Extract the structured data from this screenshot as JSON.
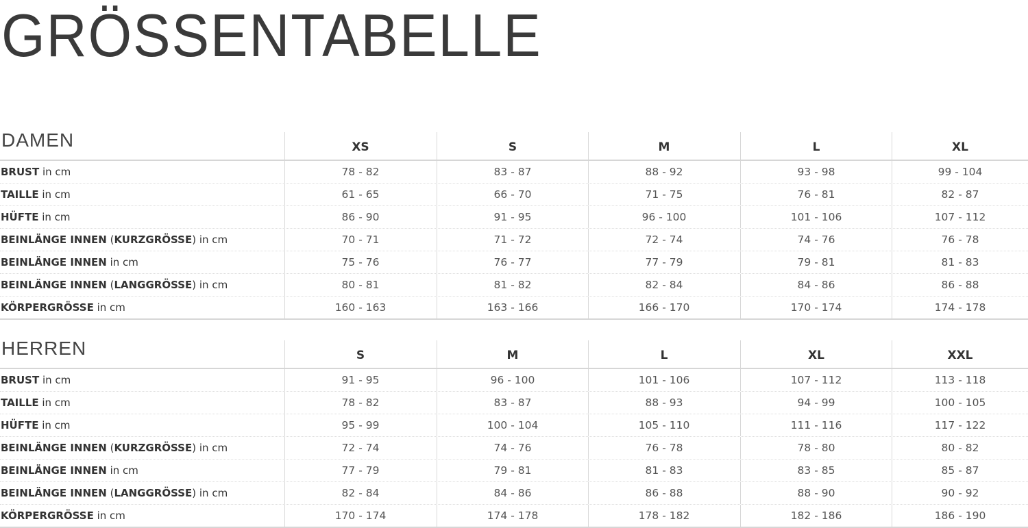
{
  "title": "GRÖSSENTABELLE",
  "sections": [
    {
      "name": "DAMEN",
      "sizes": [
        "XS",
        "S",
        "M",
        "L",
        "XL"
      ],
      "rows": [
        {
          "label": [
            [
              "b",
              "BRUST"
            ],
            [
              "n",
              " in cm"
            ]
          ],
          "values": [
            "78 - 82",
            "83 - 87",
            "88 - 92",
            "93 - 98",
            "99 - 104"
          ]
        },
        {
          "label": [
            [
              "b",
              "TAILLE"
            ],
            [
              "n",
              " in cm"
            ]
          ],
          "values": [
            "61 - 65",
            "66 - 70",
            "71 - 75",
            "76 - 81",
            "82 - 87"
          ]
        },
        {
          "label": [
            [
              "b",
              "HÜFTE"
            ],
            [
              "n",
              " in cm"
            ]
          ],
          "values": [
            "86 - 90",
            "91 - 95",
            "96 - 100",
            "101 - 106",
            "107 - 112"
          ]
        },
        {
          "label": [
            [
              "b",
              "BEINLÄNGE INNEN"
            ],
            [
              "n",
              " ("
            ],
            [
              "b",
              "KURZGRÖSSE"
            ],
            [
              "n",
              ") in cm"
            ]
          ],
          "values": [
            "70 - 71",
            "71 - 72",
            "72 - 74",
            "74 - 76",
            "76 - 78"
          ]
        },
        {
          "label": [
            [
              "b",
              "BEINLÄNGE INNEN"
            ],
            [
              "n",
              " in cm"
            ]
          ],
          "values": [
            "75 - 76",
            "76 - 77",
            "77 - 79",
            "79 - 81",
            "81 - 83"
          ]
        },
        {
          "label": [
            [
              "b",
              "BEINLÄNGE INNEN"
            ],
            [
              "n",
              " ("
            ],
            [
              "b",
              "LANGGRÖSSE"
            ],
            [
              "n",
              ") in cm"
            ]
          ],
          "values": [
            "80 - 81",
            "81 - 82",
            "82 - 84",
            "84 - 86",
            "86 - 88"
          ]
        },
        {
          "label": [
            [
              "b",
              "KÖRPERGRÖSSE"
            ],
            [
              "n",
              " in cm"
            ]
          ],
          "values": [
            "160 - 163",
            "163 - 166",
            "166 - 170",
            "170 - 174",
            "174 - 178"
          ]
        }
      ]
    },
    {
      "name": "HERREN",
      "sizes": [
        "S",
        "M",
        "L",
        "XL",
        "XXL"
      ],
      "rows": [
        {
          "label": [
            [
              "b",
              "BRUST"
            ],
            [
              "n",
              " in cm"
            ]
          ],
          "values": [
            "91 - 95",
            "96 - 100",
            "101 - 106",
            "107 - 112",
            "113 - 118"
          ]
        },
        {
          "label": [
            [
              "b",
              "TAILLE"
            ],
            [
              "n",
              " in cm"
            ]
          ],
          "values": [
            "78 - 82",
            "83 - 87",
            "88 - 93",
            "94 - 99",
            "100 - 105"
          ]
        },
        {
          "label": [
            [
              "b",
              "HÜFTE"
            ],
            [
              "n",
              " in cm"
            ]
          ],
          "values": [
            "95 - 99",
            "100 - 104",
            "105 - 110",
            "111 - 116",
            "117 - 122"
          ]
        },
        {
          "label": [
            [
              "b",
              "BEINLÄNGE INNEN"
            ],
            [
              "n",
              " ("
            ],
            [
              "b",
              "KURZGRÖSSE"
            ],
            [
              "n",
              ") in cm"
            ]
          ],
          "values": [
            "72 - 74",
            "74 - 76",
            "76 - 78",
            "78 - 80",
            "80 - 82"
          ]
        },
        {
          "label": [
            [
              "b",
              "BEINLÄNGE INNEN"
            ],
            [
              "n",
              " in cm"
            ]
          ],
          "values": [
            "77 - 79",
            "79 - 81",
            "81 - 83",
            "83 - 85",
            "85 - 87"
          ]
        },
        {
          "label": [
            [
              "b",
              "BEINLÄNGE INNEN"
            ],
            [
              "n",
              " ("
            ],
            [
              "b",
              "LANGGRÖSSE"
            ],
            [
              "n",
              ") in cm"
            ]
          ],
          "values": [
            "82 - 84",
            "84 - 86",
            "86 - 88",
            "88 - 90",
            "90 - 92"
          ]
        },
        {
          "label": [
            [
              "b",
              "KÖRPERGRÖSSE"
            ],
            [
              "n",
              " in cm"
            ]
          ],
          "values": [
            "170 - 174",
            "174 - 178",
            "178 - 182",
            "182 - 186",
            "186 - 190"
          ]
        }
      ]
    }
  ]
}
